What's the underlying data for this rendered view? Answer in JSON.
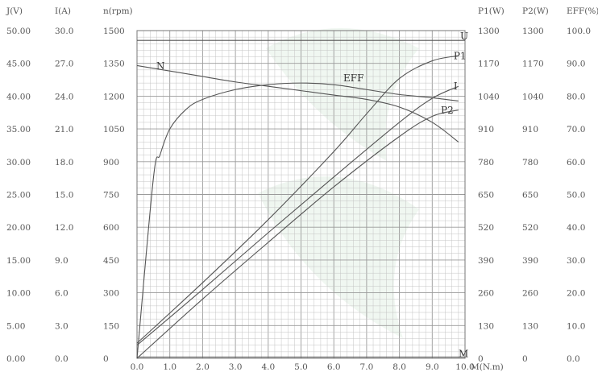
{
  "chart_data": {
    "type": "line",
    "grid": true,
    "x_axis": {
      "label": "M(N.m)",
      "range": [
        0,
        10
      ],
      "ticks": [
        "0.0",
        "1.0",
        "2.0",
        "3.0",
        "4.0",
        "5.0",
        "6.0",
        "7.0",
        "8.0",
        "9.0",
        "10.0"
      ]
    },
    "y_axes": [
      {
        "id": "U",
        "header": "J(V)",
        "side": "left",
        "range": [
          0,
          50
        ],
        "ticks": [
          "0.00",
          "5.00",
          "10.00",
          "15.00",
          "20.00",
          "25.00",
          "30.00",
          "35.00",
          "40.00",
          "45.00",
          "50.00"
        ]
      },
      {
        "id": "I",
        "header": "I(A)",
        "side": "left",
        "range": [
          0,
          30
        ],
        "ticks": [
          "0.0",
          "3.0",
          "6.0",
          "9.0",
          "12.0",
          "15.0",
          "18.0",
          "21.0",
          "24.0",
          "27.0",
          "30.0"
        ]
      },
      {
        "id": "n",
        "header": "n(rpm)",
        "side": "left",
        "range": [
          0,
          1500
        ],
        "ticks": [
          "0",
          "150",
          "300",
          "450",
          "600",
          "750",
          "900",
          "1050",
          "1200",
          "1350",
          "1500"
        ]
      },
      {
        "id": "P1",
        "header": "P1(W)",
        "side": "right",
        "range": [
          0,
          1300
        ],
        "ticks": [
          "0",
          "130",
          "260",
          "390",
          "520",
          "650",
          "780",
          "910",
          "1040",
          "1170",
          "1300"
        ]
      },
      {
        "id": "P2",
        "header": "P2(W)",
        "side": "right",
        "range": [
          0,
          1300
        ],
        "ticks": [
          "0",
          "130",
          "260",
          "390",
          "520",
          "650",
          "780",
          "910",
          "1040",
          "1170",
          "1300"
        ]
      },
      {
        "id": "EFF",
        "header": "EFF(%)",
        "side": "right",
        "range": [
          0,
          100
        ],
        "ticks": [
          "0.0",
          "10.0",
          "20.0",
          "30.0",
          "40.0",
          "50.0",
          "60.0",
          "70.0",
          "80.0",
          "90.0",
          "100.0"
        ]
      }
    ],
    "series": [
      {
        "name": "U",
        "axis": "U",
        "label": "U",
        "x": [
          0,
          10
        ],
        "y": [
          48.5,
          48.5
        ]
      },
      {
        "name": "N",
        "axis": "n",
        "label": "N",
        "x": [
          0,
          1,
          2,
          3,
          4,
          5,
          6,
          7,
          8,
          9,
          9.8
        ],
        "y": [
          1340,
          1315,
          1290,
          1265,
          1245,
          1225,
          1205,
          1185,
          1150,
          1080,
          990
        ]
      },
      {
        "name": "EFF",
        "axis": "EFF",
        "label": "EFF",
        "x": [
          0,
          0.5,
          0.7,
          1,
          1.5,
          2,
          3,
          4,
          5,
          6,
          7,
          8,
          9,
          9.8
        ],
        "y": [
          0,
          55,
          62,
          70,
          76,
          79,
          82,
          83.5,
          84,
          83.5,
          82,
          80.5,
          79.5,
          78.5
        ]
      },
      {
        "name": "P1",
        "axis": "P1",
        "label": "P1",
        "x": [
          0,
          2,
          4,
          6,
          7,
          8,
          9,
          9.8
        ],
        "y": [
          60,
          300,
          550,
          820,
          970,
          1110,
          1180,
          1200
        ]
      },
      {
        "name": "I",
        "axis": "I",
        "label": "I",
        "x": [
          0,
          2,
          4,
          6,
          8,
          9,
          9.8
        ],
        "y": [
          1.2,
          6.3,
          11.5,
          16.6,
          21.6,
          23.8,
          24.9
        ]
      },
      {
        "name": "P2",
        "axis": "P2",
        "label": "P2",
        "x": [
          0,
          2,
          4,
          6,
          8,
          9,
          9.8
        ],
        "y": [
          0,
          235,
          460,
          680,
          880,
          960,
          985
        ]
      },
      {
        "name": "M",
        "axis": "U",
        "label": "M",
        "x": [
          0,
          10
        ],
        "y": [
          0.2,
          0.2
        ]
      }
    ],
    "colors": {
      "background": "#ffffff",
      "grid": "#c4c4c4",
      "grid_major": "#9a9a9a",
      "frame": "#777777",
      "curve": "#555555",
      "text": "#555555"
    }
  }
}
